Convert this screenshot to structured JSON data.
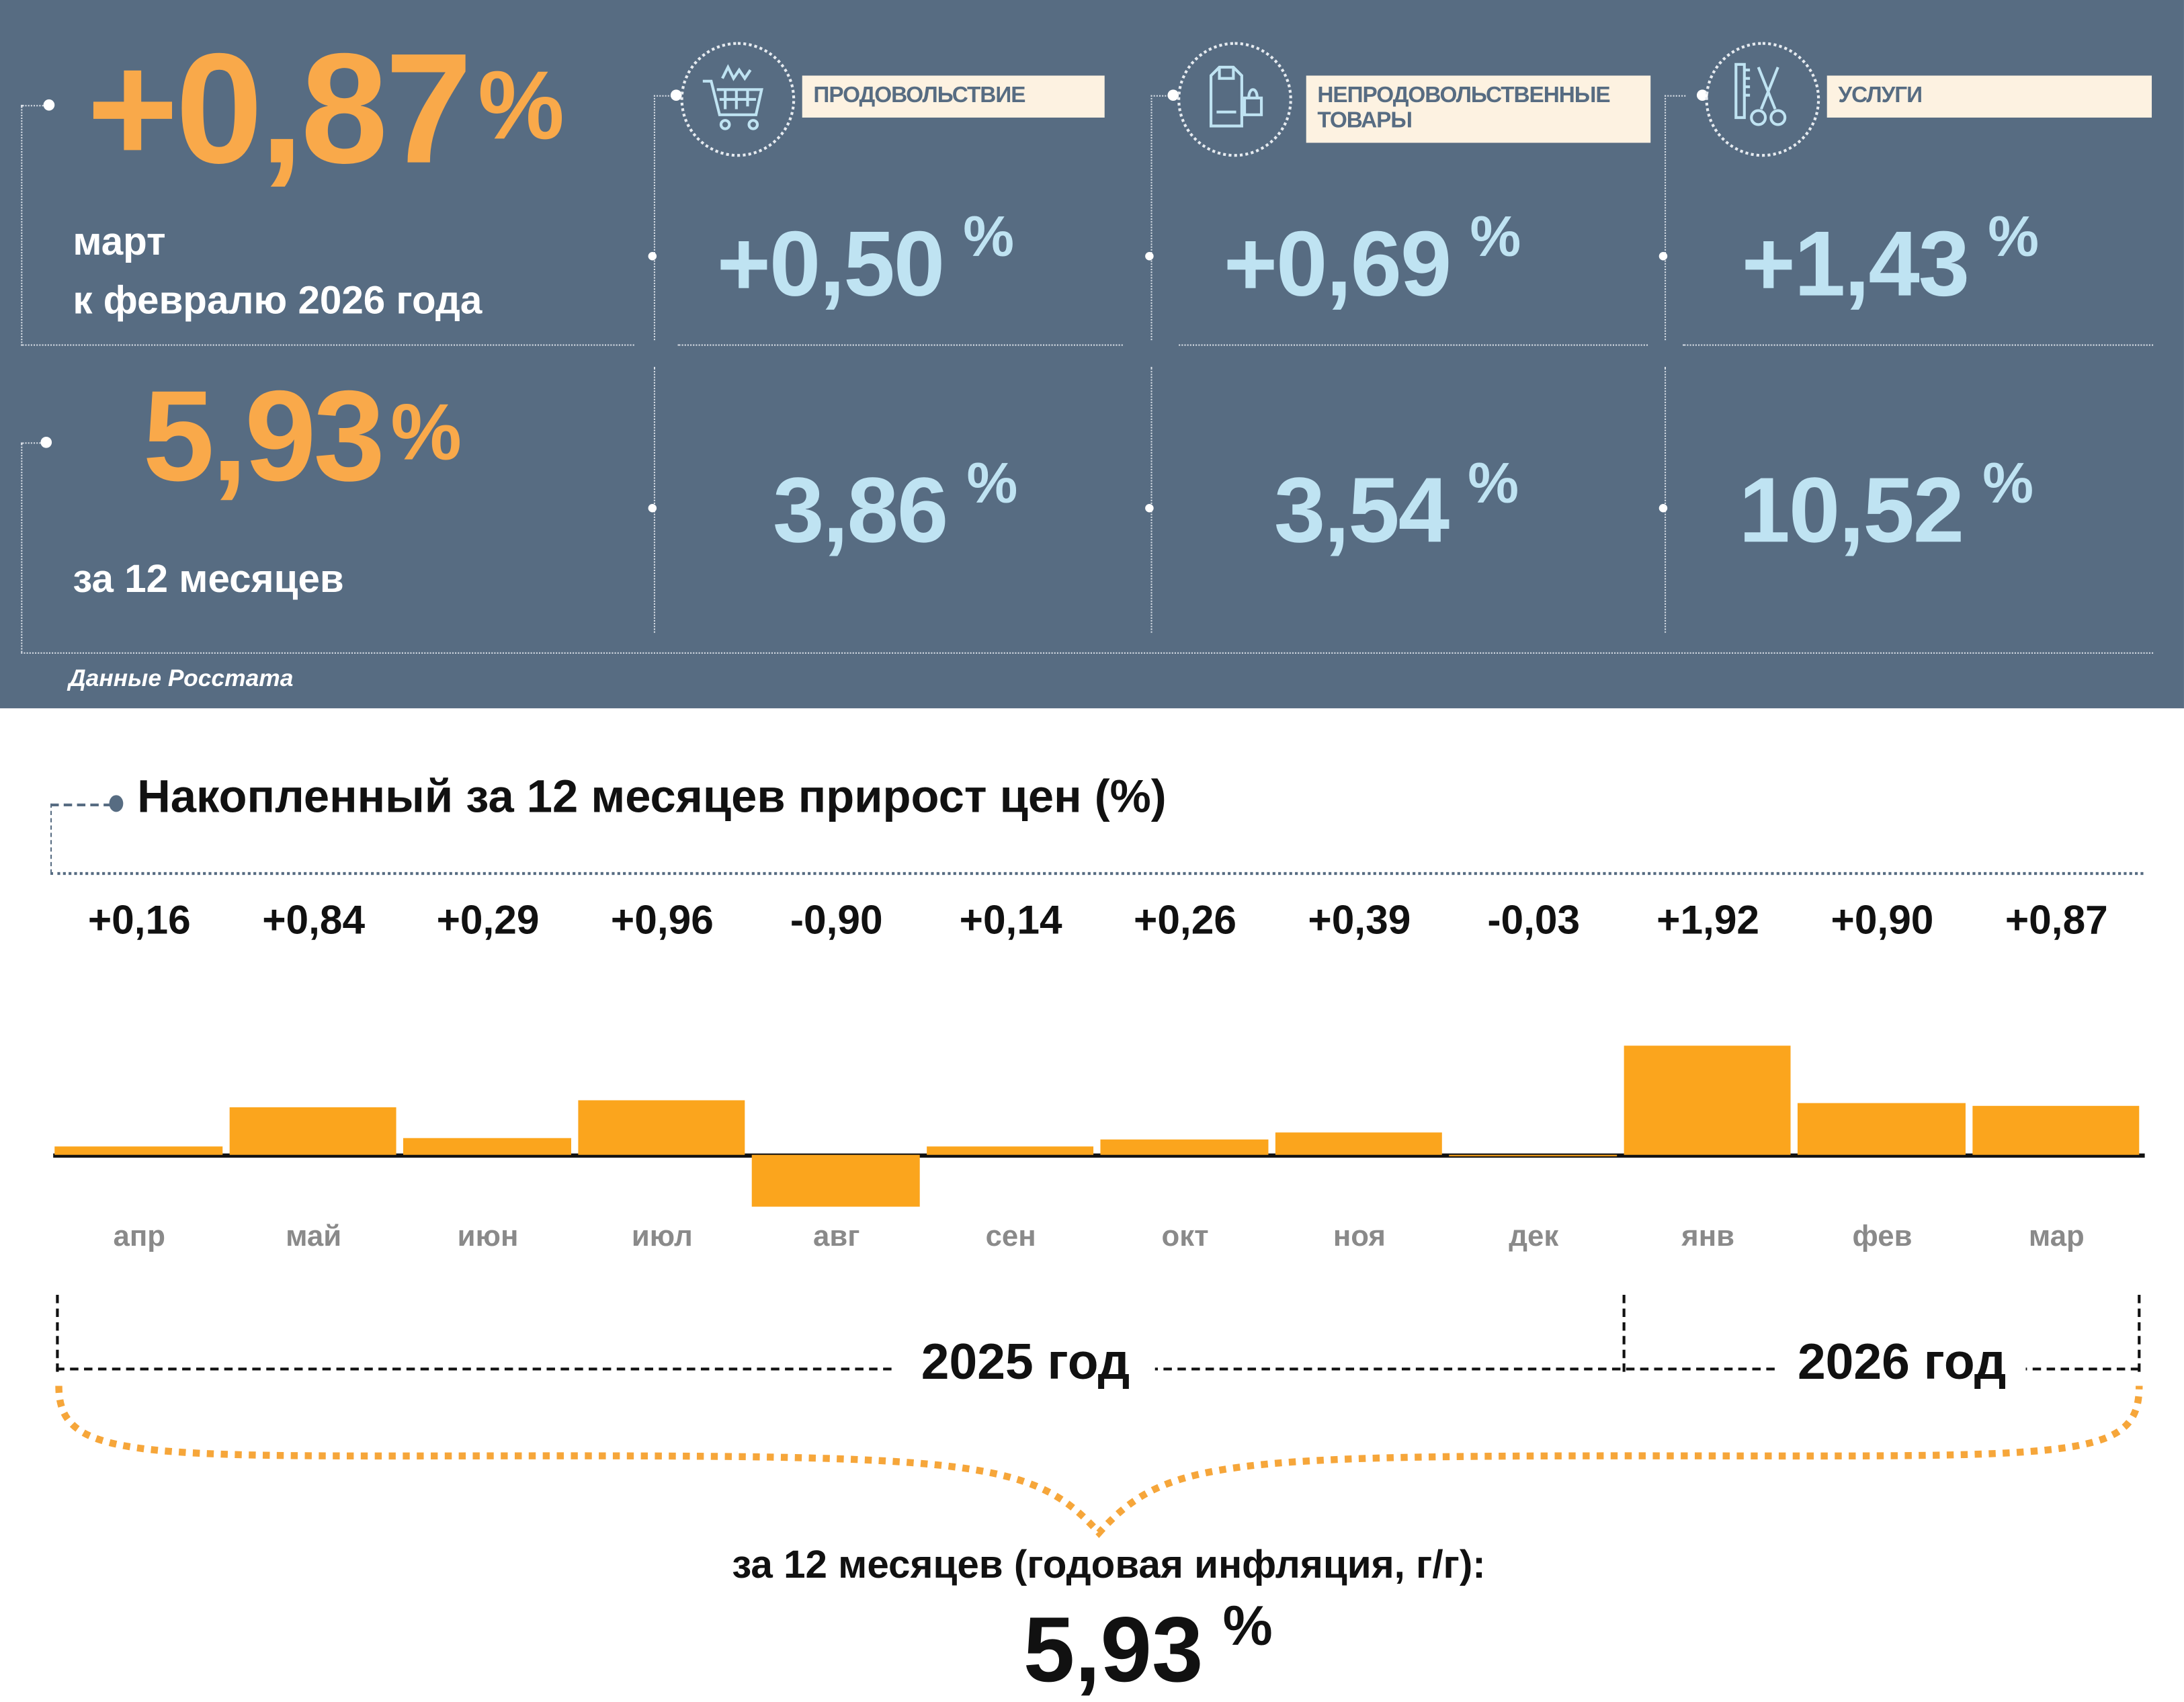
{
  "headline": {
    "monthly_value": "+0,87",
    "percent_sign": "%",
    "monthly_caption_line1": "март",
    "monthly_caption_line2": "к февралю 2026 года",
    "annual_value": "5,93",
    "annual_caption": "за 12 месяцев",
    "source": "Данные Росстата"
  },
  "categories": [
    {
      "label": "ПРОДОВОЛЬСТВИЕ",
      "icon": "shopping-cart-icon",
      "monthly": "+0,50",
      "annual": "3,86"
    },
    {
      "label_line1": "НЕПРОДОВОЛЬСТВЕННЫЕ",
      "label_line2": "ТОВАРЫ",
      "icon": "clothes-bag-icon",
      "monthly": "+0,69",
      "annual": "3,54"
    },
    {
      "label": "УСЛУГИ",
      "icon": "comb-scissors-icon",
      "monthly": "+1,43",
      "annual": "10,52"
    }
  ],
  "colors": {
    "panel": "#576c82",
    "orange": "#f9a94a",
    "bar": "#fba51d",
    "light_blue": "#bfe3f2",
    "tag_bg": "#fdf2e1"
  },
  "chart_data": {
    "type": "bar",
    "title": "Накопленный за 12 месяцев прирост цен (%)",
    "categories": [
      "апр",
      "май",
      "июн",
      "июл",
      "авг",
      "сен",
      "окт",
      "ноя",
      "дек",
      "янв",
      "фев",
      "мар"
    ],
    "values": [
      0.16,
      0.84,
      0.29,
      0.96,
      -0.9,
      0.14,
      0.26,
      0.39,
      -0.03,
      1.92,
      0.9,
      0.87
    ],
    "value_labels": [
      "+0,16",
      "+0,84",
      "+0,29",
      "+0,96",
      "-0,90",
      "+0,14",
      "+0,26",
      "+0,39",
      "-0,03",
      "+1,92",
      "+0,90",
      "+0,87"
    ],
    "year_groups": [
      {
        "label": "2025 год",
        "months": 9
      },
      {
        "label": "2026 год",
        "months": 3
      }
    ],
    "ylim": [
      -0.9,
      1.92
    ],
    "grid": false,
    "summary_caption": "за 12 месяцев (годовая инфляция, г/г):",
    "summary_value": "5,93",
    "summary_percent": "%"
  }
}
